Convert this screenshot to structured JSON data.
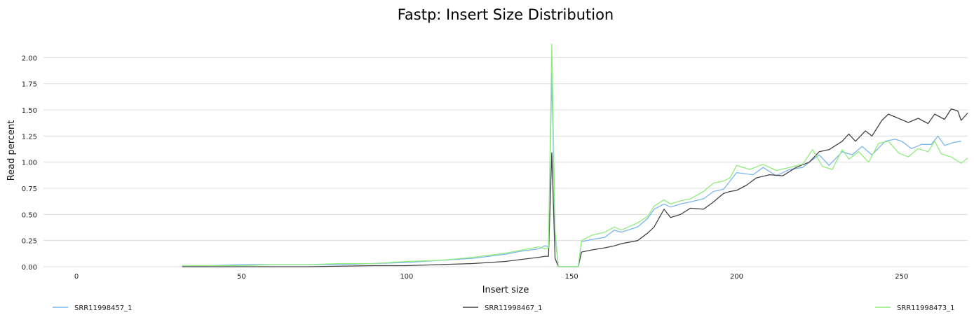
{
  "chart_data": {
    "type": "line",
    "title": "Fastp: Insert Size Distribution",
    "xlabel": "Insert size",
    "ylabel": "Read percent",
    "xlim": [
      -10,
      270
    ],
    "ylim": [
      0,
      2.15
    ],
    "x_ticks": [
      0,
      50,
      100,
      150,
      200,
      250
    ],
    "x_tick_labels": [
      "0",
      "50",
      "100",
      "150",
      "200",
      "250"
    ],
    "y_ticks": [
      0,
      0.25,
      0.5,
      0.75,
      1.0,
      1.25,
      1.5,
      1.75,
      2.0
    ],
    "y_tick_labels": [
      "0.00",
      "0.25",
      "0.50",
      "0.75",
      "1.00",
      "1.25",
      "1.50",
      "1.75",
      "2.00"
    ],
    "grid": true,
    "legend_position": "bottom",
    "series": [
      {
        "name": "SRR11998457_1",
        "color": "#7cb5ec",
        "points": [
          [
            32,
            0.01
          ],
          [
            40,
            0.01
          ],
          [
            50,
            0.02
          ],
          [
            60,
            0.02
          ],
          [
            70,
            0.02
          ],
          [
            80,
            0.02
          ],
          [
            90,
            0.03
          ],
          [
            100,
            0.04
          ],
          [
            110,
            0.06
          ],
          [
            120,
            0.08
          ],
          [
            130,
            0.12
          ],
          [
            135,
            0.15
          ],
          [
            140,
            0.17
          ],
          [
            142,
            0.2
          ],
          [
            143,
            0.19
          ],
          [
            144,
            1.85
          ],
          [
            145,
            0.3
          ],
          [
            146,
            0.0
          ],
          [
            152,
            0.0
          ],
          [
            153,
            0.24
          ],
          [
            156,
            0.26
          ],
          [
            160,
            0.28
          ],
          [
            163,
            0.35
          ],
          [
            165,
            0.33
          ],
          [
            170,
            0.38
          ],
          [
            173,
            0.46
          ],
          [
            175,
            0.55
          ],
          [
            178,
            0.6
          ],
          [
            180,
            0.57
          ],
          [
            183,
            0.6
          ],
          [
            186,
            0.62
          ],
          [
            190,
            0.65
          ],
          [
            193,
            0.72
          ],
          [
            196,
            0.74
          ],
          [
            198,
            0.82
          ],
          [
            200,
            0.9
          ],
          [
            205,
            0.88
          ],
          [
            208,
            0.95
          ],
          [
            212,
            0.87
          ],
          [
            216,
            0.93
          ],
          [
            220,
            0.95
          ],
          [
            222,
            1.0
          ],
          [
            225,
            1.07
          ],
          [
            228,
            0.97
          ],
          [
            232,
            1.1
          ],
          [
            235,
            1.07
          ],
          [
            238,
            1.15
          ],
          [
            241,
            1.07
          ],
          [
            245,
            1.2
          ],
          [
            248,
            1.22
          ],
          [
            250,
            1.2
          ],
          [
            253,
            1.13
          ],
          [
            256,
            1.17
          ],
          [
            259,
            1.17
          ],
          [
            261,
            1.25
          ],
          [
            263,
            1.16
          ],
          [
            266,
            1.19
          ],
          [
            268,
            1.2
          ]
        ]
      },
      {
        "name": "SRR11998467_1",
        "color": "#434348",
        "points": [
          [
            32,
            0.0
          ],
          [
            50,
            0.0
          ],
          [
            70,
            0.0
          ],
          [
            90,
            0.01
          ],
          [
            100,
            0.01
          ],
          [
            110,
            0.02
          ],
          [
            120,
            0.03
          ],
          [
            130,
            0.05
          ],
          [
            135,
            0.07
          ],
          [
            140,
            0.09
          ],
          [
            142,
            0.1
          ],
          [
            143,
            0.1
          ],
          [
            144,
            1.09
          ],
          [
            145,
            0.08
          ],
          [
            146,
            0.0
          ],
          [
            152,
            0.0
          ],
          [
            153,
            0.14
          ],
          [
            156,
            0.16
          ],
          [
            160,
            0.18
          ],
          [
            163,
            0.2
          ],
          [
            165,
            0.22
          ],
          [
            170,
            0.25
          ],
          [
            173,
            0.32
          ],
          [
            175,
            0.38
          ],
          [
            178,
            0.55
          ],
          [
            180,
            0.47
          ],
          [
            183,
            0.5
          ],
          [
            186,
            0.56
          ],
          [
            190,
            0.55
          ],
          [
            193,
            0.62
          ],
          [
            196,
            0.7
          ],
          [
            198,
            0.72
          ],
          [
            200,
            0.73
          ],
          [
            203,
            0.78
          ],
          [
            206,
            0.85
          ],
          [
            210,
            0.88
          ],
          [
            214,
            0.87
          ],
          [
            218,
            0.95
          ],
          [
            222,
            1.0
          ],
          [
            225,
            1.1
          ],
          [
            228,
            1.12
          ],
          [
            232,
            1.2
          ],
          [
            234,
            1.27
          ],
          [
            236,
            1.2
          ],
          [
            239,
            1.3
          ],
          [
            241,
            1.25
          ],
          [
            244,
            1.4
          ],
          [
            246,
            1.46
          ],
          [
            249,
            1.42
          ],
          [
            252,
            1.38
          ],
          [
            255,
            1.42
          ],
          [
            258,
            1.37
          ],
          [
            260,
            1.46
          ],
          [
            263,
            1.41
          ],
          [
            265,
            1.51
          ],
          [
            267,
            1.49
          ],
          [
            268,
            1.4
          ],
          [
            270,
            1.47
          ]
        ]
      },
      {
        "name": "SRR11998473_1",
        "color": "#90ed7d",
        "points": [
          [
            32,
            0.01
          ],
          [
            40,
            0.01
          ],
          [
            50,
            0.01
          ],
          [
            60,
            0.02
          ],
          [
            70,
            0.02
          ],
          [
            80,
            0.03
          ],
          [
            90,
            0.03
          ],
          [
            100,
            0.05
          ],
          [
            110,
            0.06
          ],
          [
            120,
            0.09
          ],
          [
            130,
            0.13
          ],
          [
            135,
            0.16
          ],
          [
            140,
            0.19
          ],
          [
            142,
            0.17
          ],
          [
            143,
            0.18
          ],
          [
            144,
            2.13
          ],
          [
            145,
            0.35
          ],
          [
            146,
            0.0
          ],
          [
            152,
            0.0
          ],
          [
            153,
            0.25
          ],
          [
            156,
            0.3
          ],
          [
            160,
            0.33
          ],
          [
            163,
            0.38
          ],
          [
            165,
            0.35
          ],
          [
            170,
            0.42
          ],
          [
            173,
            0.48
          ],
          [
            175,
            0.58
          ],
          [
            178,
            0.64
          ],
          [
            180,
            0.6
          ],
          [
            183,
            0.63
          ],
          [
            186,
            0.65
          ],
          [
            190,
            0.72
          ],
          [
            193,
            0.8
          ],
          [
            196,
            0.82
          ],
          [
            198,
            0.85
          ],
          [
            200,
            0.97
          ],
          [
            204,
            0.93
          ],
          [
            208,
            0.98
          ],
          [
            212,
            0.92
          ],
          [
            216,
            0.95
          ],
          [
            220,
            0.98
          ],
          [
            223,
            1.12
          ],
          [
            226,
            0.96
          ],
          [
            229,
            0.93
          ],
          [
            232,
            1.12
          ],
          [
            234,
            1.03
          ],
          [
            237,
            1.1
          ],
          [
            240,
            1.0
          ],
          [
            243,
            1.18
          ],
          [
            246,
            1.2
          ],
          [
            249,
            1.09
          ],
          [
            252,
            1.05
          ],
          [
            255,
            1.13
          ],
          [
            258,
            1.1
          ],
          [
            260,
            1.2
          ],
          [
            262,
            1.08
          ],
          [
            265,
            1.05
          ],
          [
            268,
            0.99
          ],
          [
            270,
            1.04
          ]
        ]
      }
    ]
  }
}
